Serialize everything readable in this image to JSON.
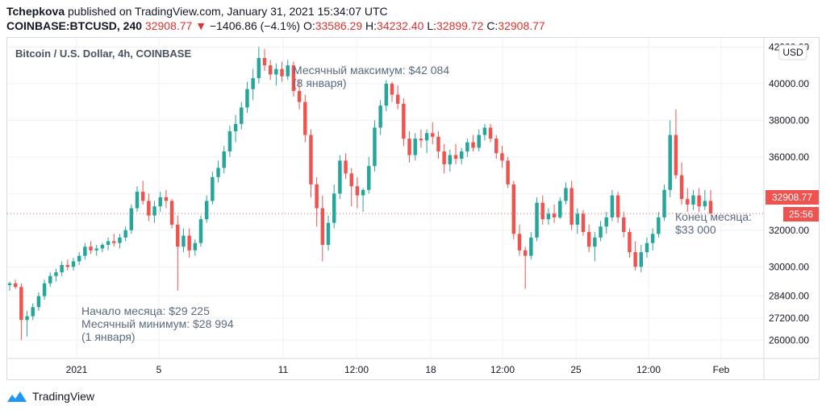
{
  "header": {
    "author": "Tchepkova",
    "published_text": " published on TradingView.com, January 31, 2021 15:34:07 UTC",
    "symbol": "COINBASE:BTCUSD, 240",
    "last": "32908.77",
    "change_arrow": "▼",
    "change": "−1406.86 (−4.1%)",
    "o_label": "O:",
    "o_value": "33586.29",
    "h_label": "H:",
    "h_value": "34232.40",
    "l_label": "L:",
    "l_value": "32899.72",
    "c_label": "C:",
    "c_value": "32908.77"
  },
  "footer": {
    "brand": "TradingView",
    "logo_icon": "tradingview-logo-icon"
  },
  "colors": {
    "up": "#26a69a",
    "down": "#ef5350",
    "grid": "#eef0f4",
    "price_line": "#ef5350"
  },
  "chart_data": {
    "type": "candlestick",
    "title": "Bitcoin / U.S. Dollar, 4h, COINBASE",
    "currency_button": "USD",
    "ylim": [
      25000,
      42500
    ],
    "y_ticks": [
      "26000.00",
      "27200.00",
      "28400.00",
      "30000.00",
      "32000.00",
      "34000.00",
      "36000.00",
      "38000.00",
      "40000.00",
      "42000.00"
    ],
    "x_ticks": [
      "2021",
      "5",
      "11",
      "12:00",
      "18",
      "12:00",
      "25",
      "12:00",
      "Feb"
    ],
    "last_price_label": "32908.77",
    "countdown_label": "25:56",
    "annotations": [
      {
        "lines": [
          "Месячный максимум: $42 084",
          "(8 января)"
        ]
      },
      {
        "lines": [
          "Начало месяца: $29 225",
          "Месячный минимум: $28 994",
          "(1 января)"
        ]
      },
      {
        "lines": [
          "Конец месяца:",
          "$33 000"
        ]
      }
    ],
    "candles": [
      [
        29000,
        29200,
        28700,
        29100
      ],
      [
        29100,
        29300,
        28800,
        28900
      ],
      [
        28900,
        29100,
        26000,
        27100
      ],
      [
        27100,
        27600,
        26200,
        27300
      ],
      [
        27300,
        28000,
        27100,
        27800
      ],
      [
        27800,
        28600,
        27600,
        28400
      ],
      [
        28400,
        29300,
        28200,
        29100
      ],
      [
        29100,
        29700,
        28900,
        29500
      ],
      [
        29500,
        29900,
        29200,
        29700
      ],
      [
        29700,
        30300,
        29500,
        30100
      ],
      [
        30100,
        30400,
        29800,
        30000
      ],
      [
        30000,
        30500,
        29800,
        30300
      ],
      [
        30300,
        30800,
        30100,
        30600
      ],
      [
        30600,
        31300,
        30400,
        31100
      ],
      [
        31100,
        31400,
        30700,
        30900
      ],
      [
        30900,
        31200,
        30600,
        31000
      ],
      [
        31000,
        31300,
        30800,
        31200
      ],
      [
        31200,
        31600,
        30900,
        31400
      ],
      [
        31400,
        31800,
        31100,
        31300
      ],
      [
        31300,
        31800,
        31000,
        31600
      ],
      [
        31600,
        32200,
        31400,
        32000
      ],
      [
        32000,
        33400,
        31800,
        33200
      ],
      [
        33200,
        34400,
        33000,
        34100
      ],
      [
        34100,
        34700,
        33400,
        33600
      ],
      [
        33600,
        34000,
        32500,
        32800
      ],
      [
        32800,
        33600,
        32400,
        33300
      ],
      [
        33300,
        34100,
        33000,
        33800
      ],
      [
        33800,
        34200,
        33200,
        33600
      ],
      [
        33600,
        33700,
        32100,
        32300
      ],
      [
        32300,
        32800,
        28700,
        31100
      ],
      [
        31100,
        32100,
        30800,
        31700
      ],
      [
        31700,
        32100,
        30500,
        30900
      ],
      [
        30900,
        31500,
        30600,
        31300
      ],
      [
        31300,
        32800,
        31100,
        32600
      ],
      [
        32600,
        33900,
        32400,
        33600
      ],
      [
        33600,
        35200,
        33400,
        34900
      ],
      [
        34900,
        35800,
        34600,
        35400
      ],
      [
        35400,
        36600,
        35100,
        36300
      ],
      [
        36300,
        37700,
        36000,
        37400
      ],
      [
        37400,
        38300,
        36800,
        37800
      ],
      [
        37800,
        39000,
        37500,
        38700
      ],
      [
        38700,
        40100,
        38400,
        39700
      ],
      [
        39700,
        40800,
        39100,
        40300
      ],
      [
        40300,
        42000,
        40000,
        41400
      ],
      [
        41400,
        41900,
        40700,
        41000
      ],
      [
        41000,
        41300,
        40200,
        40500
      ],
      [
        40500,
        41100,
        39900,
        40800
      ],
      [
        40800,
        41200,
        40100,
        40400
      ],
      [
        40400,
        41300,
        40200,
        41000
      ],
      [
        41000,
        41200,
        39300,
        39600
      ],
      [
        39600,
        40200,
        38600,
        39000
      ],
      [
        39000,
        39400,
        36800,
        37200
      ],
      [
        37200,
        37500,
        33800,
        34500
      ],
      [
        34500,
        34900,
        32200,
        33200
      ],
      [
        33200,
        33900,
        30300,
        31200
      ],
      [
        31200,
        32800,
        30900,
        32400
      ],
      [
        32400,
        34500,
        32100,
        34000
      ],
      [
        34000,
        36100,
        33700,
        35800
      ],
      [
        35800,
        36200,
        34800,
        35100
      ],
      [
        35100,
        35400,
        33300,
        34400
      ],
      [
        34400,
        34900,
        33200,
        33900
      ],
      [
        33900,
        34300,
        33000,
        34200
      ],
      [
        34200,
        36000,
        34000,
        35500
      ],
      [
        35500,
        38000,
        35200,
        37600
      ],
      [
        37600,
        39100,
        37200,
        38800
      ],
      [
        38800,
        40200,
        38500,
        40000
      ],
      [
        40000,
        40100,
        39000,
        39400
      ],
      [
        39400,
        39900,
        38600,
        38900
      ],
      [
        38900,
        39200,
        36600,
        37000
      ],
      [
        37000,
        37400,
        35700,
        36100
      ],
      [
        36100,
        37300,
        35800,
        37000
      ],
      [
        37000,
        37500,
        36500,
        36900
      ],
      [
        36900,
        37500,
        36200,
        37300
      ],
      [
        37300,
        37900,
        36700,
        37100
      ],
      [
        37100,
        37400,
        35900,
        36300
      ],
      [
        36300,
        36700,
        35100,
        35600
      ],
      [
        35600,
        36400,
        35200,
        36100
      ],
      [
        36100,
        36700,
        35600,
        35900
      ],
      [
        35900,
        36500,
        35600,
        36300
      ],
      [
        36300,
        37000,
        36000,
        36800
      ],
      [
        36800,
        37200,
        36300,
        36500
      ],
      [
        36500,
        37500,
        36300,
        37200
      ],
      [
        37200,
        37800,
        36900,
        37600
      ],
      [
        37600,
        37800,
        36800,
        37000
      ],
      [
        37000,
        37200,
        35900,
        36200
      ],
      [
        36200,
        36600,
        35400,
        35800
      ],
      [
        35800,
        36000,
        34300,
        34500
      ],
      [
        34500,
        34700,
        31500,
        31800
      ],
      [
        31800,
        32300,
        30600,
        30900
      ],
      [
        30900,
        31100,
        28800,
        30600
      ],
      [
        30600,
        31900,
        30400,
        31600
      ],
      [
        31600,
        33800,
        31400,
        33500
      ],
      [
        33500,
        33900,
        32300,
        32600
      ],
      [
        32600,
        33200,
        32300,
        32900
      ],
      [
        32900,
        33400,
        32400,
        32700
      ],
      [
        32700,
        33800,
        32600,
        33600
      ],
      [
        33600,
        34600,
        33400,
        34300
      ],
      [
        34300,
        34700,
        32000,
        32300
      ],
      [
        32300,
        33200,
        31800,
        32900
      ],
      [
        32900,
        33100,
        31700,
        31900
      ],
      [
        31900,
        32300,
        30800,
        31100
      ],
      [
        31100,
        31900,
        30300,
        31600
      ],
      [
        31600,
        32500,
        31400,
        32200
      ],
      [
        32200,
        33000,
        31800,
        32700
      ],
      [
        32700,
        34200,
        32500,
        33900
      ],
      [
        33900,
        34100,
        32400,
        32700
      ],
      [
        32700,
        33000,
        31600,
        31900
      ],
      [
        31900,
        32100,
        30500,
        30800
      ],
      [
        30800,
        31400,
        29800,
        30000
      ],
      [
        30000,
        31200,
        29700,
        30800
      ],
      [
        30800,
        31600,
        30500,
        31300
      ],
      [
        31300,
        32100,
        30900,
        31800
      ],
      [
        31800,
        33000,
        31600,
        32700
      ],
      [
        32700,
        34500,
        32500,
        34200
      ],
      [
        34200,
        38000,
        33800,
        37200
      ],
      [
        37200,
        38600,
        34800,
        35000
      ],
      [
        35000,
        35700,
        33400,
        33700
      ],
      [
        33700,
        34300,
        33000,
        33400
      ],
      [
        33400,
        34200,
        33100,
        33900
      ],
      [
        33900,
        34300,
        33000,
        33300
      ],
      [
        33300,
        34200,
        33100,
        33600
      ],
      [
        33600,
        34200,
        32900,
        32909
      ]
    ]
  }
}
